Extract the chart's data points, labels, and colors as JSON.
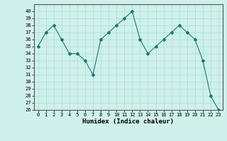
{
  "x": [
    0,
    1,
    2,
    3,
    4,
    5,
    6,
    7,
    8,
    9,
    10,
    11,
    12,
    13,
    14,
    15,
    16,
    17,
    18,
    19,
    20,
    21,
    22,
    23
  ],
  "y": [
    35,
    37,
    38,
    36,
    34,
    34,
    33,
    31,
    36,
    37,
    38,
    39,
    40,
    36,
    34,
    35,
    36,
    37,
    38,
    37,
    36,
    33,
    28,
    26
  ],
  "line_color": "#1a7a6e",
  "marker": "D",
  "marker_size": 2,
  "bg_color": "#cff0eb",
  "grid_color": "#aaddd8",
  "xlabel": "Humidex (Indice chaleur)",
  "ylim": [
    26,
    41
  ],
  "xlim": [
    -0.5,
    23.5
  ],
  "yticks": [
    26,
    27,
    28,
    29,
    30,
    31,
    32,
    33,
    34,
    35,
    36,
    37,
    38,
    39,
    40
  ],
  "xticks": [
    0,
    1,
    2,
    3,
    4,
    5,
    6,
    7,
    8,
    9,
    10,
    11,
    12,
    13,
    14,
    15,
    16,
    17,
    18,
    19,
    20,
    21,
    22,
    23
  ],
  "tick_fontsize": 5,
  "label_fontsize": 6.5
}
